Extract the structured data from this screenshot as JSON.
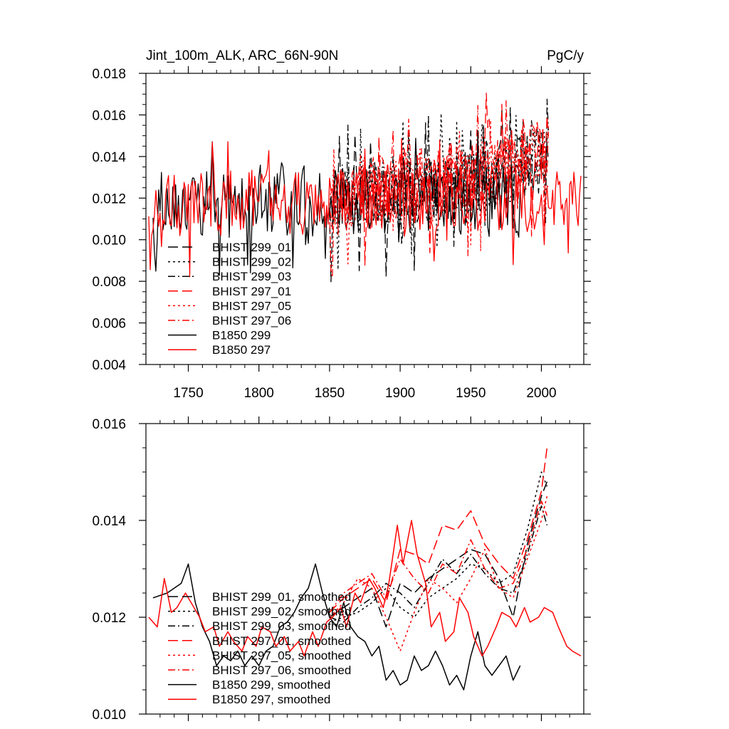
{
  "chart_data": [
    {
      "type": "line",
      "title_left": "Jint_100m_ALK, ARC_66N-90N",
      "title_right": "PgC/y",
      "xlim": [
        1720,
        2030
      ],
      "ylim": [
        0.004,
        0.018
      ],
      "xticks": [
        1750,
        1800,
        1850,
        1900,
        1950,
        2000
      ],
      "xtick_labels": [
        "1750",
        "1800",
        "1850",
        "1900",
        "1950",
        "2000"
      ],
      "yticks": [
        0.004,
        0.006,
        0.008,
        0.01,
        0.012,
        0.014,
        0.016,
        0.018
      ],
      "ytick_labels": [
        "0.004",
        "0.006",
        "0.008",
        "0.010",
        "0.012",
        "0.014",
        "0.016",
        "0.018"
      ],
      "series": [
        {
          "name": "BHIST 299_01",
          "color": "#000000",
          "dash": "long-dash",
          "x_range": [
            1850,
            2005
          ],
          "mean": 0.0122,
          "trend_end": 0.014,
          "noise": 0.0016,
          "seed": 11
        },
        {
          "name": "BHIST 299_02",
          "color": "#000000",
          "dash": "dot",
          "x_range": [
            1850,
            2005
          ],
          "mean": 0.0121,
          "trend_end": 0.0141,
          "noise": 0.0016,
          "seed": 23
        },
        {
          "name": "BHIST 299_03",
          "color": "#000000",
          "dash": "dash-dot",
          "x_range": [
            1850,
            2005
          ],
          "mean": 0.0121,
          "trend_end": 0.014,
          "noise": 0.0016,
          "seed": 37
        },
        {
          "name": "BHIST 297_01",
          "color": "#ff0000",
          "dash": "long-dash",
          "x_range": [
            1850,
            2005
          ],
          "mean": 0.0123,
          "trend_end": 0.0145,
          "noise": 0.0016,
          "seed": 41
        },
        {
          "name": "BHIST 297_05",
          "color": "#ff0000",
          "dash": "dot",
          "x_range": [
            1850,
            2005
          ],
          "mean": 0.0122,
          "trend_end": 0.0143,
          "noise": 0.0016,
          "seed": 53
        },
        {
          "name": "BHIST 297_06",
          "color": "#ff0000",
          "dash": "dash-dot",
          "x_range": [
            1850,
            2005
          ],
          "mean": 0.0123,
          "trend_end": 0.0144,
          "noise": 0.0016,
          "seed": 67
        },
        {
          "name": "B1850 299",
          "color": "#000000",
          "dash": "solid",
          "x_range": [
            1725,
            1985
          ],
          "mean": 0.0118,
          "trend_end": 0.0118,
          "noise": 0.0016,
          "seed": 79
        },
        {
          "name": "B1850 297",
          "color": "#ff0000",
          "dash": "solid",
          "x_range": [
            1722,
            2028
          ],
          "mean": 0.0118,
          "trend_end": 0.0118,
          "noise": 0.0015,
          "seed": 97
        }
      ]
    },
    {
      "type": "line",
      "xlim": [
        1720,
        2030
      ],
      "ylim": [
        0.01,
        0.016
      ],
      "xticks": [
        1750,
        1800,
        1850,
        1900,
        1950,
        2000
      ],
      "yticks": [
        0.01,
        0.012,
        0.014,
        0.016
      ],
      "ytick_labels": [
        "0.010",
        "0.012",
        "0.014",
        "0.016"
      ],
      "series": [
        {
          "name": "BHIST 299_01, smoothed",
          "color": "#000000",
          "dash": "long-dash",
          "x": [
            1850,
            1860,
            1870,
            1880,
            1890,
            1900,
            1910,
            1920,
            1930,
            1940,
            1950,
            1960,
            1970,
            1980,
            1990,
            2000,
            2004
          ],
          "y": [
            0.012,
            0.0122,
            0.0124,
            0.0126,
            0.0118,
            0.0127,
            0.0125,
            0.0128,
            0.013,
            0.0132,
            0.0134,
            0.0133,
            0.0128,
            0.012,
            0.0135,
            0.0145,
            0.0148
          ]
        },
        {
          "name": "BHIST 299_02, smoothed",
          "color": "#000000",
          "dash": "dot",
          "x": [
            1850,
            1860,
            1870,
            1880,
            1890,
            1900,
            1910,
            1920,
            1930,
            1940,
            1950,
            1960,
            1970,
            1980,
            1990,
            2000,
            2004
          ],
          "y": [
            0.0119,
            0.012,
            0.0121,
            0.0123,
            0.0126,
            0.0122,
            0.012,
            0.0124,
            0.0126,
            0.0128,
            0.0131,
            0.013,
            0.0127,
            0.0129,
            0.0138,
            0.015,
            0.0147
          ]
        },
        {
          "name": "BHIST 299_03, smoothed",
          "color": "#000000",
          "dash": "dash-dot",
          "x": [
            1850,
            1860,
            1870,
            1880,
            1890,
            1900,
            1910,
            1920,
            1930,
            1940,
            1950,
            1960,
            1970,
            1980,
            1990,
            2000,
            2004
          ],
          "y": [
            0.012,
            0.0119,
            0.0122,
            0.0124,
            0.0127,
            0.0125,
            0.0122,
            0.0127,
            0.0132,
            0.0129,
            0.0133,
            0.0129,
            0.0126,
            0.0125,
            0.0133,
            0.0143,
            0.0139
          ]
        },
        {
          "name": "BHIST 297_01, smoothed",
          "color": "#ff0000",
          "dash": "long-dash",
          "x": [
            1850,
            1860,
            1870,
            1880,
            1890,
            1900,
            1910,
            1920,
            1930,
            1940,
            1950,
            1960,
            1970,
            1980,
            1990,
            2000,
            2004
          ],
          "y": [
            0.0121,
            0.0124,
            0.0126,
            0.0128,
            0.0123,
            0.0134,
            0.0133,
            0.0131,
            0.0139,
            0.0138,
            0.0142,
            0.0135,
            0.0131,
            0.0128,
            0.0136,
            0.0146,
            0.0155
          ]
        },
        {
          "name": "BHIST 297_05, smoothed",
          "color": "#ff0000",
          "dash": "dot",
          "x": [
            1850,
            1860,
            1870,
            1880,
            1890,
            1900,
            1910,
            1920,
            1930,
            1940,
            1950,
            1960,
            1970,
            1980,
            1990,
            2000,
            2004
          ],
          "y": [
            0.012,
            0.0123,
            0.0128,
            0.0126,
            0.012,
            0.0113,
            0.0121,
            0.0128,
            0.0126,
            0.0123,
            0.0128,
            0.0134,
            0.0126,
            0.0124,
            0.0132,
            0.014,
            0.0145
          ]
        },
        {
          "name": "BHIST 297_06, smoothed",
          "color": "#ff0000",
          "dash": "dash-dot",
          "x": [
            1850,
            1860,
            1870,
            1880,
            1890,
            1900,
            1910,
            1920,
            1930,
            1940,
            1950,
            1960,
            1970,
            1980,
            1990,
            2000,
            2004
          ],
          "y": [
            0.0121,
            0.0125,
            0.0127,
            0.0129,
            0.0124,
            0.0132,
            0.0128,
            0.0125,
            0.0131,
            0.0129,
            0.0136,
            0.013,
            0.0126,
            0.0127,
            0.0134,
            0.0144,
            0.0141
          ]
        },
        {
          "name": "B1850 299, smoothed",
          "color": "#000000",
          "dash": "solid",
          "x": [
            1725,
            1735,
            1745,
            1750,
            1755,
            1760,
            1765,
            1770,
            1775,
            1780,
            1785,
            1790,
            1795,
            1800,
            1805,
            1810,
            1815,
            1820,
            1825,
            1830,
            1835,
            1840,
            1845,
            1850,
            1855,
            1860,
            1865,
            1870,
            1875,
            1880,
            1885,
            1890,
            1895,
            1900,
            1905,
            1910,
            1915,
            1920,
            1925,
            1930,
            1935,
            1940,
            1945,
            1950,
            1955,
            1960,
            1965,
            1970,
            1975,
            1980,
            1985
          ],
          "y": [
            0.0124,
            0.0125,
            0.0127,
            0.0131,
            0.0123,
            0.0118,
            0.0115,
            0.011,
            0.0112,
            0.0111,
            0.0113,
            0.011,
            0.0112,
            0.011,
            0.0113,
            0.0114,
            0.0118,
            0.0119,
            0.0121,
            0.0124,
            0.0126,
            0.0131,
            0.0125,
            0.012,
            0.0118,
            0.0123,
            0.0118,
            0.0116,
            0.0115,
            0.0112,
            0.0114,
            0.0107,
            0.0109,
            0.0106,
            0.0107,
            0.0112,
            0.0109,
            0.011,
            0.0113,
            0.011,
            0.0106,
            0.0108,
            0.0105,
            0.0112,
            0.0117,
            0.011,
            0.0108,
            0.011,
            0.0112,
            0.0107,
            0.011
          ]
        },
        {
          "name": "B1850 297, smoothed",
          "color": "#ff0000",
          "dash": "solid",
          "x": [
            1722,
            1728,
            1733,
            1738,
            1742,
            1748,
            1752,
            1758,
            1762,
            1768,
            1772,
            1778,
            1782,
            1788,
            1792,
            1798,
            1802,
            1808,
            1812,
            1818,
            1822,
            1828,
            1832,
            1838,
            1842,
            1848,
            1852,
            1858,
            1862,
            1868,
            1872,
            1878,
            1882,
            1888,
            1892,
            1898,
            1902,
            1908,
            1912,
            1918,
            1922,
            1928,
            1932,
            1938,
            1942,
            1948,
            1952,
            1958,
            1962,
            1968,
            1972,
            1978,
            1982,
            1988,
            1992,
            1998,
            2002,
            2008,
            2012,
            2018,
            2022,
            2028
          ],
          "y": [
            0.012,
            0.0118,
            0.0128,
            0.0121,
            0.0122,
            0.0125,
            0.0123,
            0.012,
            0.0117,
            0.0118,
            0.0114,
            0.0117,
            0.0115,
            0.0113,
            0.0116,
            0.0114,
            0.0118,
            0.0117,
            0.0114,
            0.0116,
            0.0113,
            0.0115,
            0.0112,
            0.0117,
            0.0114,
            0.0119,
            0.012,
            0.0122,
            0.0118,
            0.0125,
            0.0123,
            0.0128,
            0.0126,
            0.0122,
            0.0127,
            0.0139,
            0.0131,
            0.014,
            0.0133,
            0.0127,
            0.0118,
            0.0121,
            0.0115,
            0.0117,
            0.0124,
            0.0121,
            0.0116,
            0.0112,
            0.0114,
            0.0118,
            0.0121,
            0.012,
            0.0118,
            0.0122,
            0.0119,
            0.012,
            0.0122,
            0.0121,
            0.0118,
            0.0114,
            0.0113,
            0.0112
          ]
        }
      ]
    }
  ]
}
